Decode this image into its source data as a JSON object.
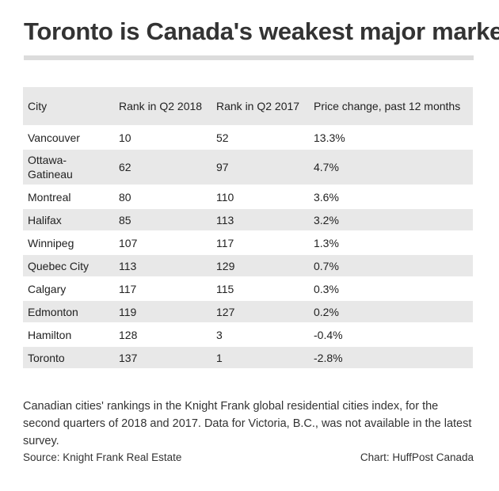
{
  "chart_data": {
    "type": "table",
    "title": "Toronto is Canada's weakest major market",
    "columns": [
      "City",
      "Rank in Q2 2018",
      "Rank in Q2 2017",
      "Price change, past 12 months"
    ],
    "rows": [
      [
        "Vancouver",
        "10",
        "52",
        "13.3%"
      ],
      [
        "Ottawa-Gatineau",
        "62",
        "97",
        "4.7%"
      ],
      [
        "Montreal",
        "80",
        "110",
        "3.6%"
      ],
      [
        "Halifax",
        "85",
        "113",
        "3.2%"
      ],
      [
        "Winnipeg",
        "107",
        "117",
        "1.3%"
      ],
      [
        "Quebec City",
        "113",
        "129",
        "0.7%"
      ],
      [
        "Calgary",
        "117",
        "115",
        "0.3%"
      ],
      [
        "Edmonton",
        "119",
        "127",
        "0.2%"
      ],
      [
        "Hamilton",
        "128",
        "3",
        "-0.4%"
      ],
      [
        "Toronto",
        "137",
        "1",
        "-2.8%"
      ]
    ],
    "description": "Canadian cities' rankings in the Knight Frank global residential cities index, for the second quarters of 2018 and 2017. Data for Victoria, B.C., was not available in the latest survey.",
    "source": "Source: Knight Frank Real Estate",
    "credit": "Chart: HuffPost Canada"
  },
  "colors": {
    "row_shade": "#e8e8e8",
    "title_rule": "#dcdcdc",
    "text": "#222222"
  }
}
